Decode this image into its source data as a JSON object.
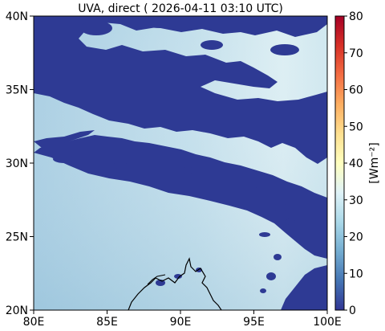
{
  "title": "UVA, direct ( 2026-04-11 03:10 UTC)",
  "map": {
    "x_ticks": [
      "80E",
      "85E",
      "90E",
      "95E",
      "100E"
    ],
    "y_ticks": [
      "40N",
      "35N",
      "30N",
      "25N",
      "20N"
    ],
    "lon_range": [
      80,
      100
    ],
    "lat_range": [
      20,
      40
    ]
  },
  "colorbar": {
    "ticks": [
      "80",
      "70",
      "60",
      "50",
      "40",
      "30",
      "20",
      "10",
      "0"
    ],
    "unit_label": "[Wm⁻²]",
    "range": [
      0,
      80
    ],
    "colormap": "RdYlBu_r",
    "stops": [
      "#313695",
      "#4575b4",
      "#74add1",
      "#abd9e9",
      "#e0f3f8",
      "#ffffbf",
      "#fee090",
      "#fdae61",
      "#f46d43",
      "#d73027",
      "#a50026"
    ]
  },
  "colors": {
    "cloud": "#2e3a94",
    "clear_dark": "#9fc7df",
    "clear_light": "#d8ecf2",
    "coast": "#000000"
  }
}
